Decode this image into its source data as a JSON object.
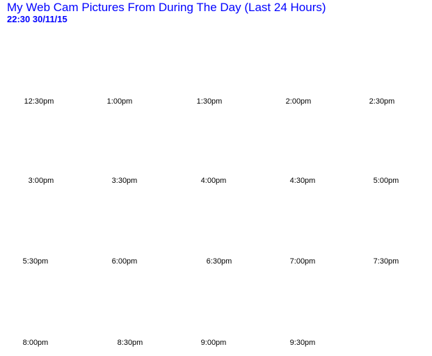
{
  "header": {
    "title": "My Web Cam Pictures From During The Day (Last 24 Hours)",
    "timestamp": "22:30  30/11/15",
    "color": "#0000ff"
  },
  "rows": [
    [
      "12:30pm",
      "1:00pm",
      "1:30pm",
      "2:00pm",
      "2:30pm"
    ],
    [
      "3:00pm",
      "3:30pm",
      "4:00pm",
      "4:30pm",
      "5:00pm"
    ],
    [
      "5:30pm",
      "6:00pm",
      "6:30pm",
      "7:00pm",
      "7:30pm"
    ],
    [
      "8:00pm",
      "8:30pm",
      "9:00pm",
      "9:30pm"
    ]
  ]
}
